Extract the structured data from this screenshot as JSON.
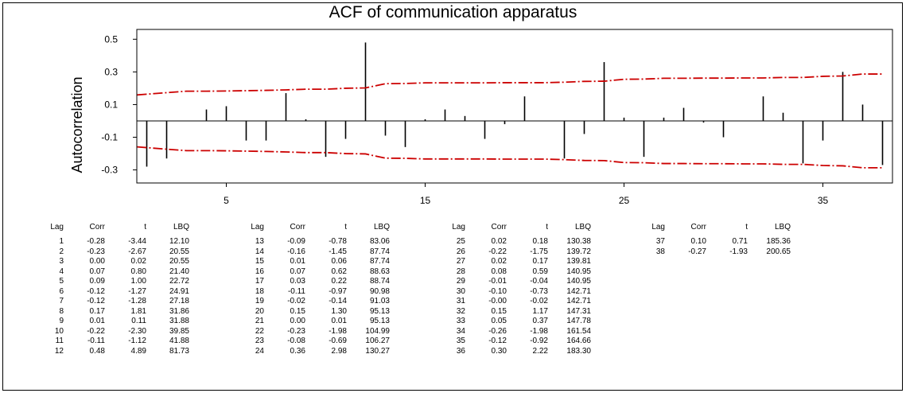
{
  "chart_data": {
    "type": "bar",
    "title": "ACF of communication apparatus",
    "xlabel": "",
    "ylabel": "Autocorrelation",
    "xlim": [
      0.5,
      38.5
    ],
    "ylim": [
      -0.38,
      0.56
    ],
    "xticks": [
      5,
      15,
      25,
      35
    ],
    "yticks": [
      0.5,
      0.3,
      0.1,
      -0.1,
      -0.3
    ],
    "ytick_labels": [
      "0.5",
      "0.3",
      "0.1",
      "-0.1",
      "-0.3"
    ],
    "grid": false,
    "x": [
      1,
      2,
      3,
      4,
      5,
      6,
      7,
      8,
      9,
      10,
      11,
      12,
      13,
      14,
      15,
      16,
      17,
      18,
      19,
      20,
      21,
      22,
      23,
      24,
      25,
      26,
      27,
      28,
      29,
      30,
      31,
      32,
      33,
      34,
      35,
      36,
      37,
      38
    ],
    "values": [
      -0.28,
      -0.23,
      0.0,
      0.07,
      0.09,
      -0.12,
      -0.12,
      0.17,
      0.01,
      -0.22,
      -0.11,
      0.48,
      -0.09,
      -0.16,
      0.01,
      0.07,
      0.03,
      -0.11,
      -0.02,
      0.15,
      0.0,
      -0.23,
      -0.08,
      0.36,
      0.02,
      -0.22,
      0.02,
      0.08,
      -0.01,
      -0.1,
      -0.0,
      0.15,
      0.05,
      -0.26,
      -0.12,
      0.3,
      0.1,
      -0.27
    ],
    "confidence_limit": [
      0.159,
      0.173,
      0.182,
      0.182,
      0.183,
      0.185,
      0.187,
      0.19,
      0.194,
      0.194,
      0.2,
      0.202,
      0.228,
      0.229,
      0.233,
      0.233,
      0.233,
      0.233,
      0.234,
      0.234,
      0.234,
      0.237,
      0.242,
      0.243,
      0.255,
      0.256,
      0.261,
      0.261,
      0.262,
      0.262,
      0.263,
      0.263,
      0.266,
      0.266,
      0.273,
      0.275,
      0.287,
      0.287
    ],
    "confidence_color": "#cc0000",
    "bar_color": "#000000"
  },
  "stats": {
    "headers": [
      "Lag",
      "Corr",
      "t",
      "LBQ"
    ],
    "columns": [
      [
        [
          "1",
          "-0.28",
          "-3.44",
          "12.10"
        ],
        [
          "2",
          "-0.23",
          "-2.67",
          "20.55"
        ],
        [
          "3",
          "0.00",
          "0.02",
          "20.55"
        ],
        [
          "4",
          "0.07",
          "0.80",
          "21.40"
        ],
        [
          "5",
          "0.09",
          "1.00",
          "22.72"
        ],
        [
          "6",
          "-0.12",
          "-1.27",
          "24.91"
        ],
        [
          "7",
          "-0.12",
          "-1.28",
          "27.18"
        ],
        [
          "8",
          "0.17",
          "1.81",
          "31.86"
        ],
        [
          "9",
          "0.01",
          "0.11",
          "31.88"
        ],
        [
          "10",
          "-0.22",
          "-2.30",
          "39.85"
        ],
        [
          "11",
          "-0.11",
          "-1.12",
          "41.88"
        ],
        [
          "12",
          "0.48",
          "4.89",
          "81.73"
        ]
      ],
      [
        [
          "13",
          "-0.09",
          "-0.78",
          "83.06"
        ],
        [
          "14",
          "-0.16",
          "-1.45",
          "87.74"
        ],
        [
          "15",
          "0.01",
          "0.06",
          "87.74"
        ],
        [
          "16",
          "0.07",
          "0.62",
          "88.63"
        ],
        [
          "17",
          "0.03",
          "0.22",
          "88.74"
        ],
        [
          "18",
          "-0.11",
          "-0.97",
          "90.98"
        ],
        [
          "19",
          "-0.02",
          "-0.14",
          "91.03"
        ],
        [
          "20",
          "0.15",
          "1.30",
          "95.13"
        ],
        [
          "21",
          "0.00",
          "0.01",
          "95.13"
        ],
        [
          "22",
          "-0.23",
          "-1.98",
          "104.99"
        ],
        [
          "23",
          "-0.08",
          "-0.69",
          "106.27"
        ],
        [
          "24",
          "0.36",
          "2.98",
          "130.27"
        ]
      ],
      [
        [
          "25",
          "0.02",
          "0.18",
          "130.38"
        ],
        [
          "26",
          "-0.22",
          "-1.75",
          "139.72"
        ],
        [
          "27",
          "0.02",
          "0.17",
          "139.81"
        ],
        [
          "28",
          "0.08",
          "0.59",
          "140.95"
        ],
        [
          "29",
          "-0.01",
          "-0.04",
          "140.95"
        ],
        [
          "30",
          "-0.10",
          "-0.73",
          "142.71"
        ],
        [
          "31",
          "-0.00",
          "-0.02",
          "142.71"
        ],
        [
          "32",
          "0.15",
          "1.17",
          "147.31"
        ],
        [
          "33",
          "0.05",
          "0.37",
          "147.78"
        ],
        [
          "34",
          "-0.26",
          "-1.98",
          "161.54"
        ],
        [
          "35",
          "-0.12",
          "-0.92",
          "164.66"
        ],
        [
          "36",
          "0.30",
          "2.22",
          "183.30"
        ]
      ],
      [
        [
          "37",
          "0.10",
          "0.71",
          "185.36"
        ],
        [
          "38",
          "-0.27",
          "-1.93",
          "200.65"
        ]
      ]
    ]
  }
}
